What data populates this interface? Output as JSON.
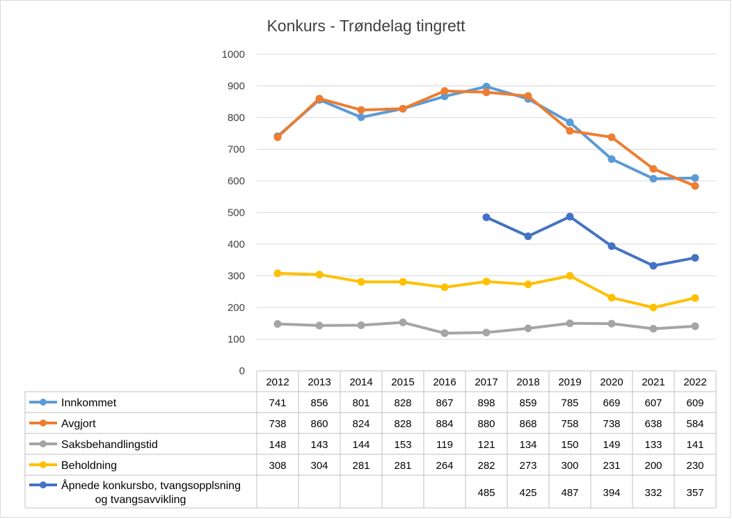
{
  "chart_data": {
    "type": "line",
    "title": "Konkurs - Trøndelag tingrett",
    "categories": [
      "2012",
      "2013",
      "2014",
      "2015",
      "2016",
      "2017",
      "2018",
      "2019",
      "2020",
      "2021",
      "2022"
    ],
    "ylim": [
      0,
      1000
    ],
    "yticks": [
      0,
      100,
      200,
      300,
      400,
      500,
      600,
      700,
      800,
      900,
      1000
    ],
    "grid": true,
    "legend": "data table below chart",
    "series": [
      {
        "name": "Innkommet",
        "color": "#5B9BD5",
        "values": [
          741,
          856,
          801,
          828,
          867,
          898,
          859,
          785,
          669,
          607,
          609
        ]
      },
      {
        "name": "Avgjort",
        "color": "#ED7D31",
        "values": [
          738,
          860,
          824,
          828,
          884,
          880,
          868,
          758,
          738,
          638,
          584
        ]
      },
      {
        "name": "Saksbehandlingstid",
        "color": "#A5A5A5",
        "values": [
          148,
          143,
          144,
          153,
          119,
          121,
          134,
          150,
          149,
          133,
          141
        ]
      },
      {
        "name": "Beholdning",
        "color": "#FFC000",
        "values": [
          308,
          304,
          281,
          281,
          264,
          282,
          273,
          300,
          231,
          200,
          230
        ]
      },
      {
        "name": "Åpnede konkursbo, tvangsopplsning og tvangsavvikling",
        "name_lines": [
          "Åpnede konkursbo, tvangsopplsning",
          "og tvangsavvikling"
        ],
        "color": "#4472C4",
        "values": [
          null,
          null,
          null,
          null,
          null,
          485,
          425,
          487,
          394,
          332,
          357
        ]
      }
    ]
  }
}
